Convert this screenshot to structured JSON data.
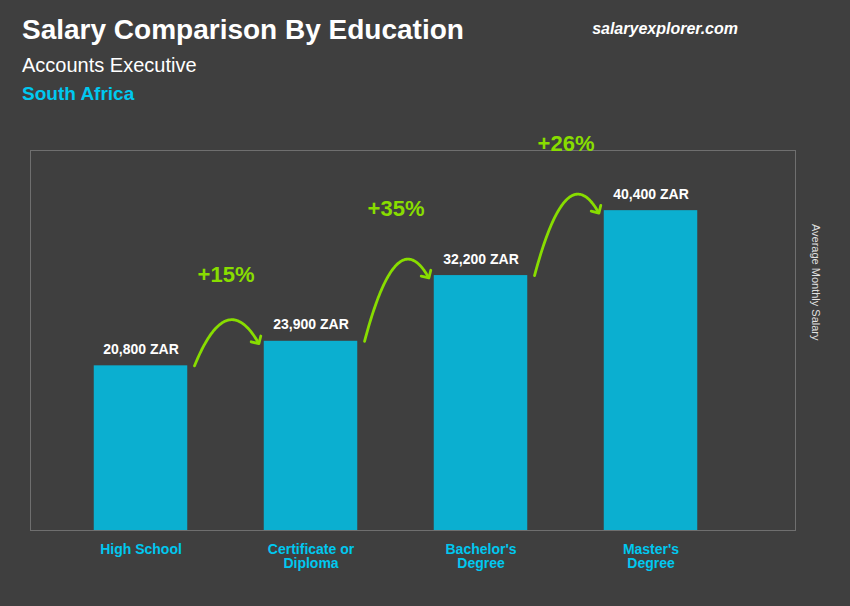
{
  "chart_data": {
    "type": "bar",
    "title": "Salary Comparison By Education",
    "subtitle": "Accounts Executive",
    "annotations": [
      "South Africa",
      "salaryexplorer.com"
    ],
    "ylabel": "Average Monthly Salary",
    "categories": [
      "High School",
      "Certificate or\nDiploma",
      "Bachelor's\nDegree",
      "Master's\nDegree"
    ],
    "values": [
      20800,
      23900,
      32200,
      40400
    ],
    "value_labels": [
      "20,800 ZAR",
      "23,900 ZAR",
      "32,200 ZAR",
      "40,400 ZAR"
    ],
    "data_labels": true,
    "color": "#00C8F0",
    "arrows": {
      "labels": [
        "+15%",
        "+35%",
        "+26%"
      ],
      "color": "#88DD00"
    },
    "ylim": [
      0,
      48000
    ],
    "tick_labels": "x",
    "grid": false
  }
}
